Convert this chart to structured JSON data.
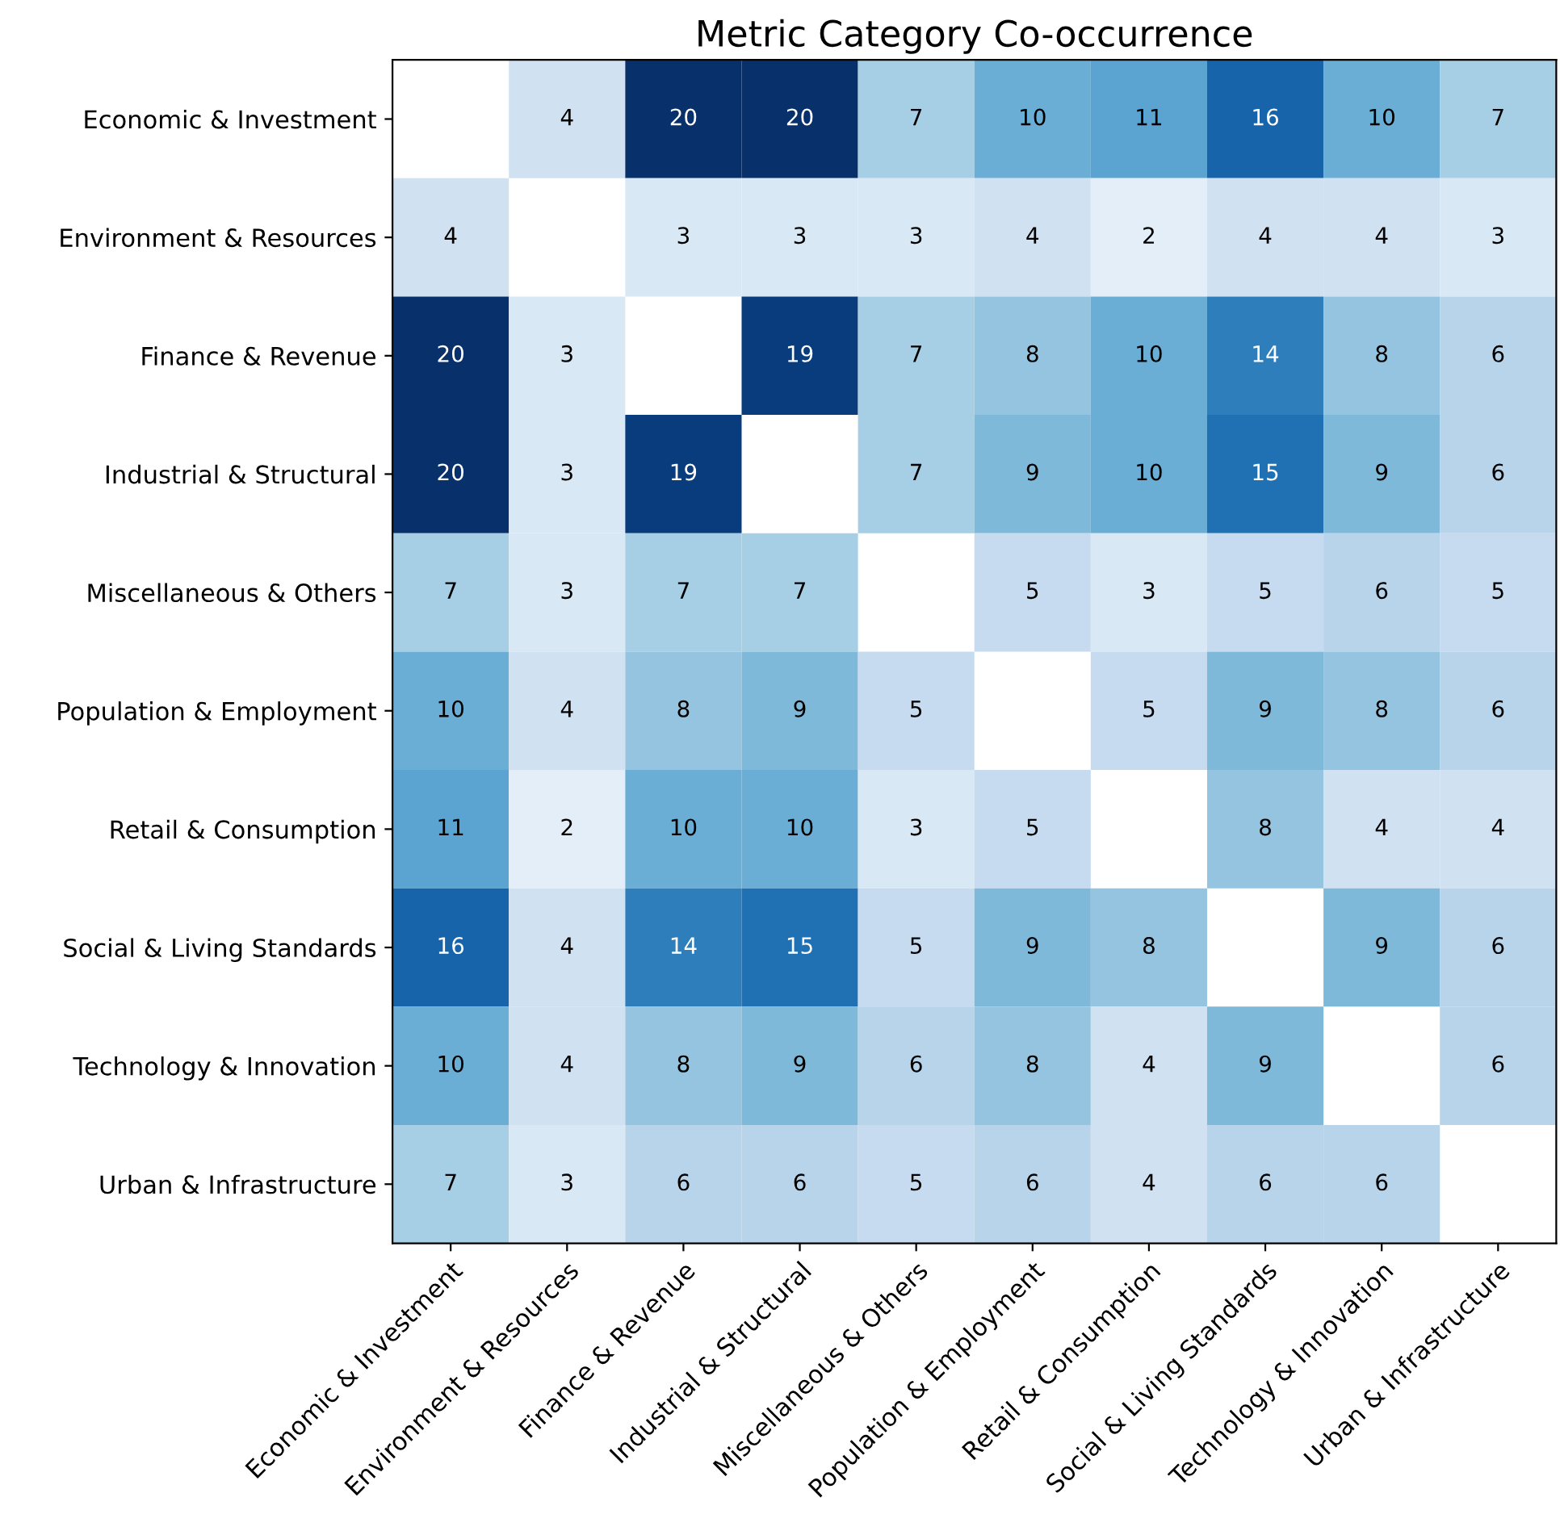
{
  "chart_data": {
    "type": "heatmap",
    "title": "Metric Category Co-occurrence",
    "categories": [
      "Economic & Investment",
      "Environment & Resources",
      "Finance & Revenue",
      "Industrial & Structural",
      "Miscellaneous & Others",
      "Population & Employment",
      "Retail & Consumption",
      "Social & Living Standards",
      "Technology & Innovation",
      "Urban & Infrastructure"
    ],
    "y_categories": [
      "Economic & Investment",
      "Environment & Resources",
      "Finance & Revenue",
      "Industrial & Structural",
      "Miscellaneous & Others",
      "Population & Employment",
      "Retail & Consumption",
      "Social & Living Standards",
      "Technology & Innovation",
      "Urban & Infrastructure"
    ],
    "cells": [
      [
        null,
        4,
        20,
        20,
        7,
        10,
        11,
        16,
        10,
        7
      ],
      [
        4,
        null,
        3,
        3,
        3,
        4,
        2,
        4,
        4,
        3
      ],
      [
        20,
        3,
        null,
        19,
        7,
        8,
        10,
        14,
        8,
        6
      ],
      [
        20,
        3,
        19,
        null,
        7,
        9,
        10,
        15,
        9,
        6
      ],
      [
        7,
        3,
        7,
        7,
        null,
        5,
        3,
        5,
        6,
        5
      ],
      [
        10,
        4,
        8,
        9,
        5,
        null,
        5,
        9,
        8,
        6
      ],
      [
        11,
        2,
        10,
        10,
        3,
        5,
        null,
        8,
        4,
        4
      ],
      [
        16,
        4,
        14,
        15,
        5,
        9,
        8,
        null,
        9,
        6
      ],
      [
        10,
        4,
        8,
        9,
        6,
        8,
        4,
        9,
        null,
        6
      ],
      [
        7,
        3,
        6,
        6,
        5,
        6,
        4,
        6,
        6,
        null
      ]
    ],
    "data_labels": true
  }
}
